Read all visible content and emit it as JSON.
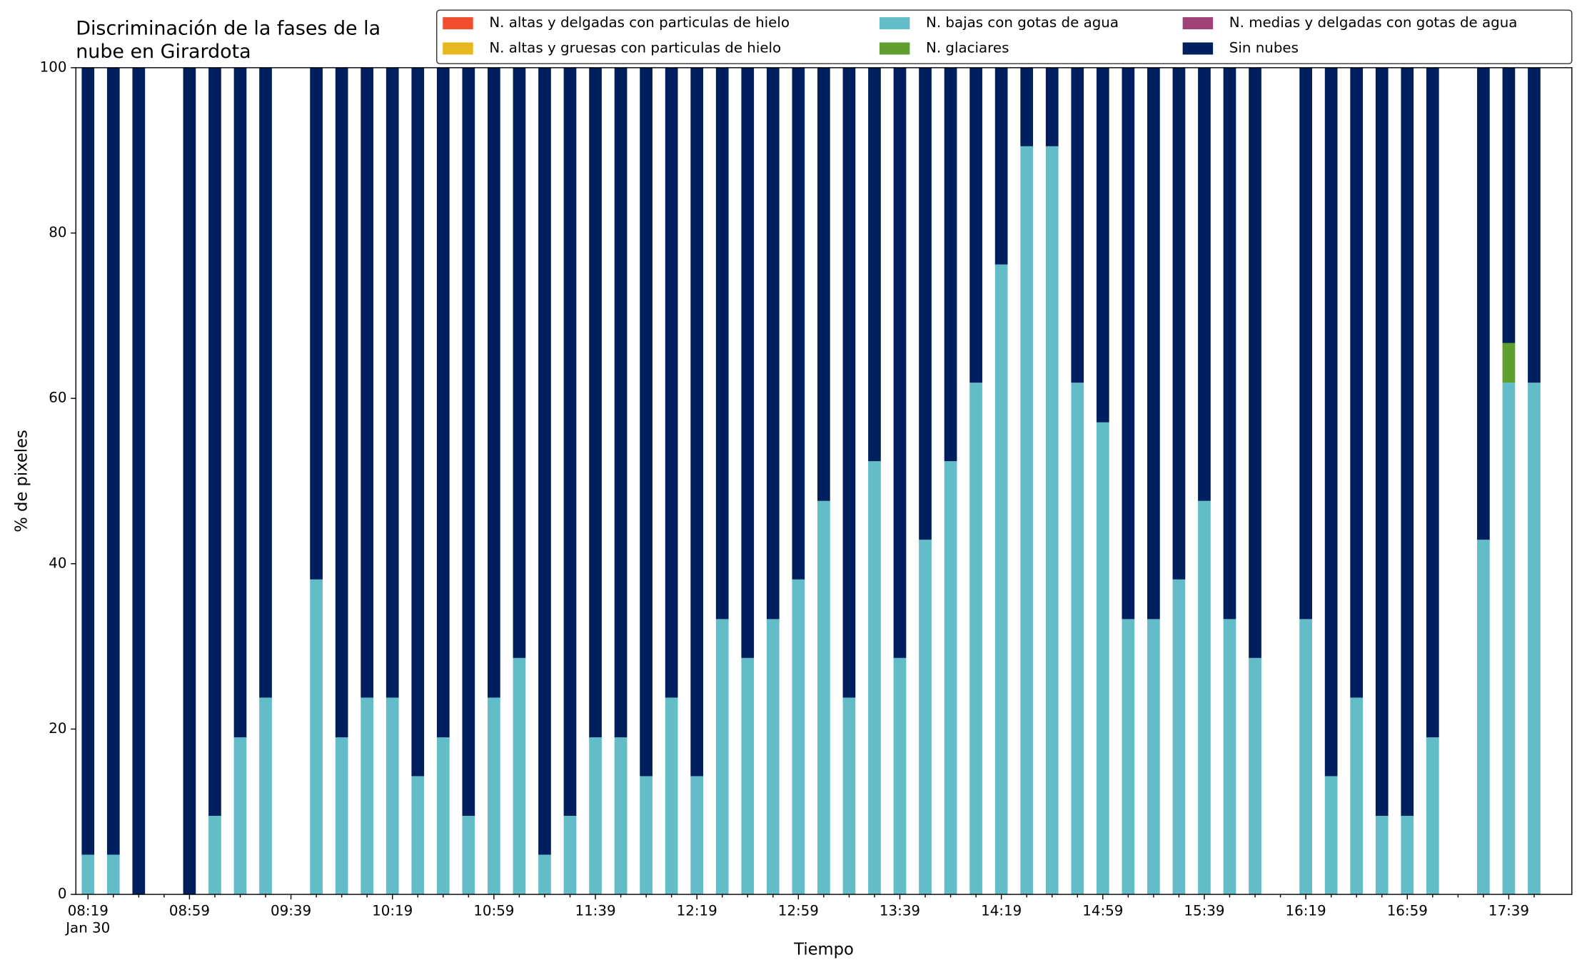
{
  "chart_data": {
    "type": "stacked_bar",
    "title": [
      "Discriminación de la fases de la",
      "nube en Girardota"
    ],
    "xlabel": "Tiempo",
    "ylabel": "% de pixeles",
    "x_date_label": "Jan 30",
    "categories": [
      "08:19",
      null,
      null,
      null,
      "08:59",
      null,
      null,
      null,
      "09:39",
      null,
      null,
      null,
      "10:19",
      null,
      null,
      null,
      "10:59",
      null,
      null,
      null,
      "11:39",
      null,
      null,
      null,
      "12:19",
      null,
      null,
      null,
      "12:59",
      null,
      null,
      null,
      "13:39",
      null,
      null,
      null,
      "14:19",
      null,
      null,
      null,
      "14:59",
      null,
      null,
      null,
      "15:39",
      null,
      null,
      null,
      "16:19",
      null,
      null,
      null,
      "16:59",
      null,
      null,
      null,
      "17:39",
      null
    ],
    "series": [
      {
        "name": "N. altas y delgadas con particulas de hielo",
        "color": "#f04e2f",
        "values": [
          0,
          0,
          0,
          null,
          0,
          0,
          0,
          0,
          null,
          0,
          0,
          0,
          0,
          0,
          0,
          0,
          0,
          0,
          0,
          0,
          0,
          0,
          0,
          0,
          0,
          0,
          0,
          0,
          0,
          0,
          0,
          0,
          0,
          0,
          0,
          0,
          0,
          0,
          0,
          0,
          0,
          0,
          0,
          0,
          0,
          0,
          0,
          null,
          0,
          0,
          0,
          0,
          0,
          0,
          null,
          0,
          0,
          0
        ]
      },
      {
        "name": "N. altas y gruesas con particulas de hielo",
        "color": "#e6b81e",
        "values": [
          0,
          0,
          0,
          null,
          0,
          0,
          0,
          0,
          null,
          0,
          0,
          0,
          0,
          0,
          0,
          0,
          0,
          0,
          0,
          0,
          0,
          0,
          0,
          0,
          0,
          0,
          0,
          0,
          0,
          0,
          0,
          0,
          0,
          0,
          0,
          0,
          0,
          0,
          0,
          0,
          0,
          0,
          0,
          0,
          0,
          0,
          0,
          null,
          0,
          0,
          0,
          0,
          0,
          0,
          null,
          0,
          0,
          0
        ]
      },
      {
        "name": "N. bajas con gotas de agua",
        "color": "#63bdc9",
        "values": [
          4.8,
          4.8,
          0,
          null,
          0,
          9.5,
          19,
          23.8,
          null,
          38.1,
          19,
          23.8,
          23.8,
          14.3,
          19,
          9.5,
          23.8,
          28.6,
          4.8,
          9.5,
          19,
          19,
          14.3,
          23.8,
          14.3,
          33.3,
          28.6,
          33.3,
          38.1,
          47.6,
          23.8,
          52.4,
          28.6,
          42.9,
          52.4,
          61.9,
          76.2,
          90.5,
          90.5,
          61.9,
          57.1,
          33.3,
          33.3,
          38.1,
          47.6,
          33.3,
          28.6,
          null,
          33.3,
          14.3,
          23.8,
          9.5,
          9.5,
          19,
          null,
          42.9,
          61.9,
          61.9
        ]
      },
      {
        "name": "N. glaciares",
        "color": "#5f9f2f",
        "values": [
          0,
          0,
          0,
          null,
          0,
          0,
          0,
          0,
          null,
          0,
          0,
          0,
          0,
          0,
          0,
          0,
          0,
          0,
          0,
          0,
          0,
          0,
          0,
          0,
          0,
          0,
          0,
          0,
          0,
          0,
          0,
          0,
          0,
          0,
          0,
          0,
          0,
          0,
          0,
          0,
          0,
          0,
          0,
          0,
          0,
          0,
          0,
          null,
          0,
          0,
          0,
          0,
          0,
          0,
          null,
          0,
          4.8,
          0
        ]
      },
      {
        "name": "N. medias y delgadas con gotas de agua",
        "color": "#a2407a",
        "values": [
          0,
          0,
          0,
          null,
          0,
          0,
          0,
          0,
          null,
          0,
          0,
          0,
          0,
          0,
          0,
          0,
          0,
          0,
          0,
          0,
          0,
          0,
          0,
          0,
          0,
          0,
          0,
          0,
          0,
          0,
          0,
          0,
          0,
          0,
          0,
          0,
          0,
          0,
          0,
          0,
          0,
          0,
          0,
          0,
          0,
          0,
          0,
          null,
          0,
          0,
          0,
          0,
          0,
          0,
          null,
          0,
          0,
          0
        ]
      },
      {
        "name": "Sin nubes",
        "color": "#001f5f",
        "values": [
          95.2,
          95.2,
          100,
          null,
          100,
          90.5,
          81,
          76.2,
          null,
          61.9,
          81,
          76.2,
          76.2,
          85.7,
          81,
          90.5,
          76.2,
          71.4,
          95.2,
          90.5,
          81,
          81,
          85.7,
          76.2,
          85.7,
          66.7,
          71.4,
          66.7,
          61.9,
          52.4,
          76.2,
          47.6,
          71.4,
          57.1,
          47.6,
          38.1,
          23.8,
          9.5,
          9.5,
          38.1,
          42.9,
          66.7,
          66.7,
          61.9,
          52.4,
          66.7,
          71.4,
          null,
          66.7,
          85.7,
          76.2,
          90.5,
          90.5,
          81,
          null,
          57.1,
          33.3,
          38.1
        ]
      }
    ],
    "ylim": [
      0,
      100
    ],
    "yticks": [
      0,
      20,
      40,
      60,
      80,
      100
    ],
    "legend": "upper right"
  }
}
